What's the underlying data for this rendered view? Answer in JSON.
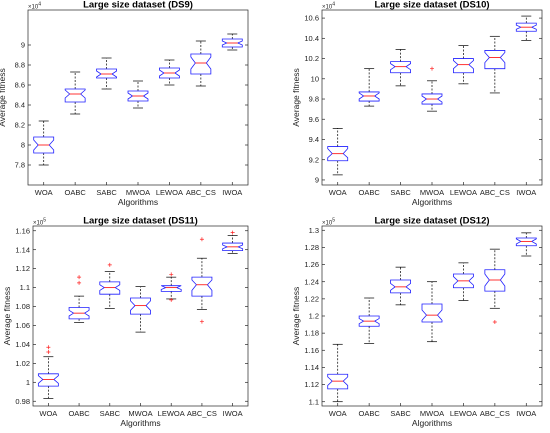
{
  "chart_data": [
    {
      "type": "box",
      "title": "Large  size dataset (DS9)",
      "xlabel": "Algorithms",
      "ylabel": "Average fitness",
      "exponent_label": "×10",
      "exponent_power": "4",
      "categories": [
        "WOA",
        "OABC",
        "SABC",
        "MWOA",
        "LEWOA",
        "ABC_CS",
        "IWOA"
      ],
      "ylim": [
        7.6,
        9.35
      ],
      "yticks": [
        7.8,
        8,
        8.2,
        8.4,
        8.6,
        8.8,
        9
      ],
      "ytick_labels": [
        "7.8",
        "8",
        "8.2",
        "8.4",
        "8.6",
        "8.8",
        "9"
      ],
      "boxes": [
        {
          "min": 7.8,
          "q1": 7.92,
          "median": 8.0,
          "q3": 8.08,
          "max": 8.24,
          "notch": [
            7.95,
            8.05
          ],
          "outliers": []
        },
        {
          "min": 8.31,
          "q1": 8.43,
          "median": 8.51,
          "q3": 8.56,
          "max": 8.73,
          "notch": [
            8.47,
            8.55
          ],
          "outliers": []
        },
        {
          "min": 8.56,
          "q1": 8.67,
          "median": 8.71,
          "q3": 8.76,
          "max": 8.87,
          "notch": [
            8.68,
            8.74
          ],
          "outliers": []
        },
        {
          "min": 8.37,
          "q1": 8.44,
          "median": 8.49,
          "q3": 8.54,
          "max": 8.64,
          "notch": [
            8.46,
            8.52
          ],
          "outliers": []
        },
        {
          "min": 8.6,
          "q1": 8.67,
          "median": 8.72,
          "q3": 8.77,
          "max": 8.85,
          "notch": [
            8.69,
            8.75
          ],
          "outliers": []
        },
        {
          "min": 8.59,
          "q1": 8.71,
          "median": 8.82,
          "q3": 8.91,
          "max": 9.04,
          "notch": [
            8.76,
            8.88
          ],
          "outliers": []
        },
        {
          "min": 8.95,
          "q1": 8.98,
          "median": 9.02,
          "q3": 9.06,
          "max": 9.11,
          "notch": [
            9.0,
            9.04
          ],
          "outliers": []
        }
      ]
    },
    {
      "type": "box",
      "title": "Large  size dataset (DS10)",
      "xlabel": "Algorithms",
      "ylabel": "Average fitness",
      "exponent_label": "×10",
      "exponent_power": "4",
      "categories": [
        "WOA",
        "OABC",
        "SABC",
        "MWOA",
        "LEWOA",
        "ABC_CS",
        "IWOA"
      ],
      "ylim": [
        8.95,
        10.68
      ],
      "yticks": [
        9,
        9.2,
        9.4,
        9.6,
        9.8,
        10,
        10.2,
        10.4,
        10.6
      ],
      "ytick_labels": [
        "9",
        "9.2",
        "9.4",
        "9.6",
        "9.8",
        "10",
        "10.2",
        "10.4",
        "10.6"
      ],
      "boxes": [
        {
          "min": 9.05,
          "q1": 9.19,
          "median": 9.26,
          "q3": 9.33,
          "max": 9.51,
          "notch": [
            9.22,
            9.31
          ],
          "outliers": []
        },
        {
          "min": 9.73,
          "q1": 9.78,
          "median": 9.83,
          "q3": 9.87,
          "max": 10.1,
          "notch": [
            9.8,
            9.86
          ],
          "outliers": []
        },
        {
          "min": 9.93,
          "q1": 10.06,
          "median": 10.12,
          "q3": 10.17,
          "max": 10.29,
          "notch": [
            10.09,
            10.15
          ],
          "outliers": []
        },
        {
          "min": 9.68,
          "q1": 9.75,
          "median": 9.8,
          "q3": 9.85,
          "max": 9.98,
          "notch": [
            9.77,
            9.83
          ],
          "outliers": [
            10.1
          ]
        },
        {
          "min": 9.95,
          "q1": 10.06,
          "median": 10.14,
          "q3": 10.2,
          "max": 10.33,
          "notch": [
            10.1,
            10.18
          ],
          "outliers": []
        },
        {
          "min": 9.86,
          "q1": 10.1,
          "median": 10.21,
          "q3": 10.28,
          "max": 10.42,
          "notch": [
            10.16,
            10.26
          ],
          "outliers": []
        },
        {
          "min": 10.38,
          "q1": 10.47,
          "median": 10.51,
          "q3": 10.55,
          "max": 10.62,
          "notch": [
            10.49,
            10.53
          ],
          "outliers": []
        }
      ]
    },
    {
      "type": "box",
      "title": "Large  size dataset (DS11)",
      "xlabel": "Algorithms",
      "ylabel": "Average fitness",
      "exponent_label": "×10",
      "exponent_power": "5",
      "categories": [
        "WOA",
        "OABC",
        "SABC",
        "MWOA",
        "LEWOA",
        "ABC_CS",
        "IWOA"
      ],
      "ylim": [
        0.975,
        1.165
      ],
      "yticks": [
        0.98,
        1,
        1.02,
        1.04,
        1.06,
        1.08,
        1.1,
        1.12,
        1.14,
        1.16
      ],
      "ytick_labels": [
        "0.98",
        "1",
        "1.02",
        "1.04",
        "1.06",
        "1.08",
        "1.1",
        "1.12",
        "1.14",
        "1.16"
      ],
      "boxes": [
        {
          "min": 0.983,
          "q1": 0.996,
          "median": 1.003,
          "q3": 1.009,
          "max": 1.027,
          "notch": [
            0.999,
            1.007
          ],
          "outliers": [
            1.037,
            1.032
          ]
        },
        {
          "min": 1.063,
          "q1": 1.067,
          "median": 1.073,
          "q3": 1.079,
          "max": 1.091,
          "notch": [
            1.07,
            1.076
          ],
          "outliers": [
            1.105,
            1.111
          ]
        },
        {
          "min": 1.078,
          "q1": 1.093,
          "median": 1.1,
          "q3": 1.106,
          "max": 1.117,
          "notch": [
            1.097,
            1.103
          ],
          "outliers": [
            1.124
          ]
        },
        {
          "min": 1.053,
          "q1": 1.072,
          "median": 1.081,
          "q3": 1.089,
          "max": 1.101,
          "notch": [
            1.076,
            1.086
          ],
          "outliers": []
        },
        {
          "min": 1.088,
          "q1": 1.096,
          "median": 1.1,
          "q3": 1.102,
          "max": 1.111,
          "notch": [
            1.098,
            1.102
          ],
          "outliers": [
            1.114,
            1.087
          ]
        },
        {
          "min": 1.077,
          "q1": 1.091,
          "median": 1.103,
          "q3": 1.111,
          "max": 1.131,
          "notch": [
            1.097,
            1.108
          ],
          "outliers": [
            1.151,
            1.064
          ]
        },
        {
          "min": 1.136,
          "q1": 1.139,
          "median": 1.143,
          "q3": 1.147,
          "max": 1.155,
          "notch": [
            1.141,
            1.145
          ],
          "outliers": [
            1.158
          ]
        }
      ]
    },
    {
      "type": "box",
      "title": "Large  size dataset (DS12)",
      "xlabel": "Algorithms",
      "ylabel": "Average fitness",
      "exponent_label": "×10",
      "exponent_power": "5",
      "categories": [
        "WOA",
        "OABC",
        "SABC",
        "MWOA",
        "LEWOA",
        "ABC_CS",
        "IWOA"
      ],
      "ylim": [
        1.095,
        1.305
      ],
      "yticks": [
        1.1,
        1.12,
        1.14,
        1.16,
        1.18,
        1.2,
        1.22,
        1.24,
        1.26,
        1.28,
        1.3
      ],
      "ytick_labels": [
        "1.1",
        "1.12",
        "1.14",
        "1.16",
        "1.18",
        "1.2",
        "1.22",
        "1.24",
        "1.26",
        "1.28",
        "1.3"
      ],
      "boxes": [
        {
          "min": 1.1,
          "q1": 1.115,
          "median": 1.124,
          "q3": 1.132,
          "max": 1.167,
          "notch": [
            1.119,
            1.129
          ],
          "outliers": []
        },
        {
          "min": 1.168,
          "q1": 1.188,
          "median": 1.194,
          "q3": 1.2,
          "max": 1.221,
          "notch": [
            1.191,
            1.197
          ],
          "outliers": []
        },
        {
          "min": 1.213,
          "q1": 1.227,
          "median": 1.234,
          "q3": 1.242,
          "max": 1.257,
          "notch": [
            1.23,
            1.238
          ],
          "outliers": []
        },
        {
          "min": 1.17,
          "q1": 1.193,
          "median": 1.201,
          "q3": 1.214,
          "max": 1.24,
          "notch": [
            1.195,
            1.207
          ],
          "outliers": []
        },
        {
          "min": 1.218,
          "q1": 1.233,
          "median": 1.241,
          "q3": 1.249,
          "max": 1.262,
          "notch": [
            1.236,
            1.246
          ],
          "outliers": []
        },
        {
          "min": 1.209,
          "q1": 1.229,
          "median": 1.242,
          "q3": 1.254,
          "max": 1.278,
          "notch": [
            1.235,
            1.249
          ],
          "outliers": [
            1.193
          ]
        },
        {
          "min": 1.27,
          "q1": 1.282,
          "median": 1.287,
          "q3": 1.291,
          "max": 1.297,
          "notch": [
            1.284,
            1.29
          ],
          "outliers": []
        }
      ]
    }
  ]
}
